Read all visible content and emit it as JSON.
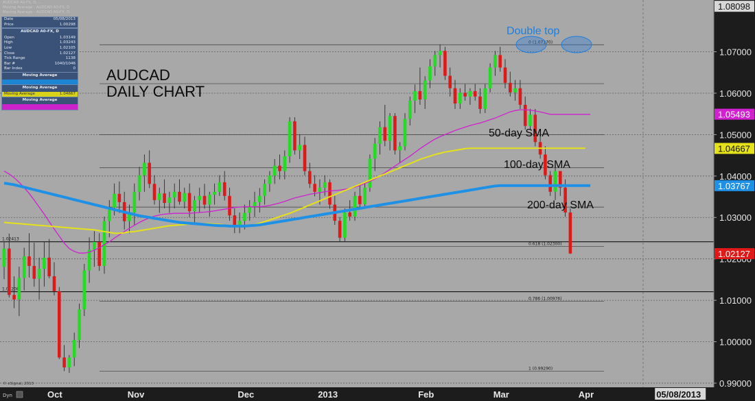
{
  "chart_data": {
    "type": "candlestick",
    "instrument": "AUDCAD",
    "title_line1": "AUDCAD",
    "title_line2": "DAILY CHART",
    "header_lines": [
      "AUDCAD A0-FX, D, ...",
      "Moving Average - AUDCAD A0-FX, D",
      "Moving Average - AUDCAD A0-FX, D"
    ],
    "y_axis": {
      "min": 0.989,
      "max": 1.0825,
      "ticks": [
        "1.07000",
        "1.06000",
        "1.05000",
        "1.04000",
        "1.03000",
        "1.02000",
        "1.01000",
        "1.00000",
        "0.99000"
      ]
    },
    "x_axis": {
      "labels": [
        {
          "label": "Oct",
          "index": 10
        },
        {
          "label": "Nov",
          "index": 26
        },
        {
          "label": "Dec",
          "index": 48
        },
        {
          "label": "2013",
          "index": 64
        },
        {
          "label": "Feb",
          "index": 84
        },
        {
          "label": "Mar",
          "index": 99
        },
        {
          "label": "Apr",
          "index": 116
        },
        {
          "label": "05/08/2013",
          "index": 134
        }
      ]
    },
    "candles": [
      [
        1.0181,
        1.0242,
        1.0151,
        1.0225
      ],
      [
        1.0225,
        1.0261,
        1.0107,
        1.0113
      ],
      [
        1.0113,
        1.0158,
        1.0081,
        1.0102
      ],
      [
        1.0102,
        1.0181,
        1.0062,
        1.0154
      ],
      [
        1.0154,
        1.0227,
        1.0124,
        1.0206
      ],
      [
        1.0206,
        1.0262,
        1.0155,
        1.0183
      ],
      [
        1.0183,
        1.0239,
        1.0133,
        1.0152
      ],
      [
        1.0152,
        1.0203,
        1.0102,
        1.0176
      ],
      [
        1.0176,
        1.0242,
        1.0133,
        1.0203
      ],
      [
        1.0203,
        1.0248,
        1.0153,
        1.0158
      ],
      [
        1.0158,
        1.0192,
        1.0112,
        1.0122
      ],
      [
        1.0122,
        1.0132,
        0.9958,
        0.9962
      ],
      [
        0.9962,
        0.9992,
        0.9929,
        0.9938
      ],
      [
        0.9938,
        0.9968,
        0.9925,
        0.9962
      ],
      [
        0.9962,
        1.0022,
        0.9941,
        1.0004
      ],
      [
        1.0004,
        1.0092,
        0.9985,
        1.0078
      ],
      [
        1.0078,
        1.0188,
        1.0062,
        1.0172
      ],
      [
        1.0172,
        1.0252,
        1.0142,
        1.0222
      ],
      [
        1.0222,
        1.0267,
        1.0181,
        1.0241
      ],
      [
        1.0241,
        1.0262,
        1.0171,
        1.0183
      ],
      [
        1.0183,
        1.0302,
        1.0164,
        1.0291
      ],
      [
        1.0291,
        1.0342,
        1.0252,
        1.0324
      ],
      [
        1.0324,
        1.0382,
        1.0305,
        1.0357
      ],
      [
        1.0357,
        1.0387,
        1.0311,
        1.0337
      ],
      [
        1.0337,
        1.0362,
        1.0271,
        1.0291
      ],
      [
        1.0291,
        1.0331,
        1.0262,
        1.0312
      ],
      [
        1.0312,
        1.0382,
        1.0282,
        1.0362
      ],
      [
        1.0362,
        1.0422,
        1.0341,
        1.0402
      ],
      [
        1.0402,
        1.0452,
        1.0362,
        1.0432
      ],
      [
        1.0432,
        1.0462,
        1.0371,
        1.0381
      ],
      [
        1.0381,
        1.0402,
        1.0331,
        1.0342
      ],
      [
        1.0342,
        1.0372,
        1.0311,
        1.0358
      ],
      [
        1.0358,
        1.0392,
        1.0322,
        1.0335
      ],
      [
        1.0335,
        1.0362,
        1.0311,
        1.0348
      ],
      [
        1.0348,
        1.0382,
        1.0322,
        1.0362
      ],
      [
        1.0362,
        1.0392,
        1.0331,
        1.0338
      ],
      [
        1.0338,
        1.0372,
        1.0322,
        1.0359
      ],
      [
        1.0359,
        1.0382,
        1.0301,
        1.0315
      ],
      [
        1.0315,
        1.0352,
        1.0282,
        1.0342
      ],
      [
        1.0342,
        1.0372,
        1.0311,
        1.0352
      ],
      [
        1.0352,
        1.0381,
        1.0321,
        1.0331
      ],
      [
        1.0331,
        1.0362,
        1.0302,
        1.0355
      ],
      [
        1.0355,
        1.0382,
        1.0331,
        1.0362
      ],
      [
        1.0362,
        1.0402,
        1.0352,
        1.0385
      ],
      [
        1.0385,
        1.0412,
        1.0341,
        1.0352
      ],
      [
        1.0352,
        1.0372,
        1.0292,
        1.0305
      ],
      [
        1.0305,
        1.0322,
        1.0262,
        1.0278
      ],
      [
        1.0278,
        1.0312,
        1.0262,
        1.0292
      ],
      [
        1.0292,
        1.0331,
        1.0271,
        1.0311
      ],
      [
        1.0311,
        1.0342,
        1.0292,
        1.0325
      ],
      [
        1.0325,
        1.0362,
        1.0301,
        1.0337
      ],
      [
        1.0337,
        1.0371,
        1.0312,
        1.0352
      ],
      [
        1.0352,
        1.0392,
        1.0331,
        1.0381
      ],
      [
        1.0381,
        1.0412,
        1.0362,
        1.0401
      ],
      [
        1.0401,
        1.0441,
        1.0381,
        1.0425
      ],
      [
        1.0425,
        1.0452,
        1.0392,
        1.0412
      ],
      [
        1.0412,
        1.0462,
        1.0392,
        1.0448
      ],
      [
        1.0448,
        1.0542,
        1.0432,
        1.0532
      ],
      [
        1.0532,
        1.0542,
        1.0452,
        1.0462
      ],
      [
        1.0462,
        1.0501,
        1.0441,
        1.0475
      ],
      [
        1.0475,
        1.0495,
        1.0402,
        1.0412
      ],
      [
        1.0412,
        1.0432,
        1.0371,
        1.0381
      ],
      [
        1.0381,
        1.0402,
        1.0351,
        1.0362
      ],
      [
        1.0362,
        1.0392,
        1.0331,
        1.0372
      ],
      [
        1.0372,
        1.0402,
        1.0352,
        1.0385
      ],
      [
        1.0385,
        1.0392,
        1.0321,
        1.0331
      ],
      [
        1.0331,
        1.0352,
        1.0282,
        1.0292
      ],
      [
        1.0292,
        1.0301,
        1.0242,
        1.0251
      ],
      [
        1.0251,
        1.0322,
        1.0242,
        1.0312
      ],
      [
        1.0312,
        1.0342,
        1.0292,
        1.0302
      ],
      [
        1.0302,
        1.0362,
        1.0292,
        1.0352
      ],
      [
        1.0352,
        1.0382,
        1.0321,
        1.0332
      ],
      [
        1.0332,
        1.0382,
        1.0322,
        1.0372
      ],
      [
        1.0372,
        1.0452,
        1.0362,
        1.0442
      ],
      [
        1.0442,
        1.0492,
        1.0412,
        1.0478
      ],
      [
        1.0478,
        1.0532,
        1.0452,
        1.0518
      ],
      [
        1.0518,
        1.0572,
        1.0472,
        1.0485
      ],
      [
        1.0485,
        1.0552,
        1.0462,
        1.0545
      ],
      [
        1.0545,
        1.0552,
        1.0452,
        1.0462
      ],
      [
        1.0462,
        1.0482,
        1.0432,
        1.0472
      ],
      [
        1.0472,
        1.0552,
        1.0462,
        1.0538
      ],
      [
        1.0538,
        1.0592,
        1.0522,
        1.0582
      ],
      [
        1.0582,
        1.0621,
        1.0552,
        1.0605
      ],
      [
        1.0605,
        1.0662,
        1.0572,
        1.0585
      ],
      [
        1.0585,
        1.0641,
        1.0562,
        1.0631
      ],
      [
        1.0631,
        1.0682,
        1.0612,
        1.0665
      ],
      [
        1.0665,
        1.0702,
        1.0642,
        1.0692
      ],
      [
        1.0692,
        1.0718,
        1.0662,
        1.0702
      ],
      [
        1.0702,
        1.0712,
        1.0632,
        1.0642
      ],
      [
        1.0642,
        1.0662,
        1.0592,
        1.0612
      ],
      [
        1.0612,
        1.0632,
        1.0562,
        1.0575
      ],
      [
        1.0575,
        1.0612,
        1.0562,
        1.0601
      ],
      [
        1.0601,
        1.0622,
        1.0582,
        1.0592
      ],
      [
        1.0592,
        1.0612,
        1.0572,
        1.0605
      ],
      [
        1.0605,
        1.0622,
        1.0582,
        1.0592
      ],
      [
        1.0592,
        1.0612,
        1.0551,
        1.0562
      ],
      [
        1.0562,
        1.0622,
        1.0552,
        1.0612
      ],
      [
        1.0612,
        1.0672,
        1.0602,
        1.0662
      ],
      [
        1.0662,
        1.0702,
        1.0642,
        1.0692
      ],
      [
        1.0692,
        1.0712,
        1.0652,
        1.0662
      ],
      [
        1.0662,
        1.0682,
        1.0612,
        1.0625
      ],
      [
        1.0625,
        1.0652,
        1.0592,
        1.0602
      ],
      [
        1.0602,
        1.0632,
        1.0582,
        1.0612
      ],
      [
        1.0612,
        1.0632,
        1.0562,
        1.0572
      ],
      [
        1.0572,
        1.0592,
        1.0512,
        1.0521
      ],
      [
        1.0521,
        1.0562,
        1.0512,
        1.0548
      ],
      [
        1.0548,
        1.0562,
        1.0472,
        1.0482
      ],
      [
        1.0482,
        1.0502,
        1.0442,
        1.0452
      ],
      [
        1.0452,
        1.0472,
        1.0392,
        1.0402
      ],
      [
        1.0402,
        1.0412,
        1.0352,
        1.0362
      ],
      [
        1.0362,
        1.0422,
        1.0342,
        1.0412
      ],
      [
        1.0412,
        1.0412,
        1.0352,
        1.0372
      ],
      [
        1.0372,
        1.0392,
        1.0302,
        1.0312
      ],
      [
        1.0312,
        1.0322,
        1.0212,
        1.0213
      ]
    ],
    "moving_averages": [
      {
        "label": "50-day SMA",
        "color": "#d020d0",
        "period": 50,
        "values": [
          1.0412,
          1.0405,
          1.0396,
          1.0385,
          1.0372,
          1.0358,
          1.0342,
          1.0325,
          1.0308,
          1.029,
          1.0272,
          1.0255,
          1.0238,
          1.0225,
          1.0218,
          1.0214,
          1.0214,
          1.0216,
          1.0221,
          1.0227,
          1.0234,
          1.0241,
          1.025,
          1.0258,
          1.0266,
          1.0274,
          1.0281,
          1.0288,
          1.0294,
          1.0299,
          1.0303,
          1.0306,
          1.0308,
          1.0309,
          1.031,
          1.031,
          1.031,
          1.031,
          1.0311,
          1.0312,
          1.0313,
          1.0314,
          1.0316,
          1.0318,
          1.032,
          1.0322,
          1.0324,
          1.0325,
          1.0326,
          1.0326,
          1.0326,
          1.0326,
          1.0327,
          1.0329,
          1.0332,
          1.0335,
          1.0339,
          1.0343,
          1.0347,
          1.035,
          1.0353,
          1.0356,
          1.0358,
          1.036,
          1.0362,
          1.0364,
          1.0365,
          1.0366,
          1.0368,
          1.037,
          1.0373,
          1.0377,
          1.0382,
          1.0387,
          1.0393,
          1.04,
          1.0408,
          1.0416,
          1.0424,
          1.0432,
          1.044,
          1.0448,
          1.0457,
          1.0466,
          1.0474,
          1.0482,
          1.0489,
          1.0495,
          1.05,
          1.0505,
          1.051,
          1.0514,
          1.0518,
          1.0522,
          1.0525,
          1.0528,
          1.0532,
          1.0536,
          1.054,
          1.0545,
          1.055,
          1.0555,
          1.0558,
          1.056,
          1.056,
          1.0559,
          1.0557,
          1.0555,
          1.0552,
          1.0549,
          1.0549,
          1.0549,
          1.0549,
          1.0549,
          1.0549,
          1.0549,
          1.0549,
          1.0549
        ]
      },
      {
        "label": "100-day SMA",
        "color": "#e6e21a",
        "period": 100,
        "values": [
          1.0288,
          1.0287,
          1.0286,
          1.0285,
          1.0284,
          1.0283,
          1.0282,
          1.0281,
          1.028,
          1.0279,
          1.0278,
          1.0277,
          1.0276,
          1.0275,
          1.0274,
          1.0273,
          1.0272,
          1.0271,
          1.027,
          1.0268,
          1.0266,
          1.0264,
          1.0262,
          1.0262,
          1.0263,
          1.0265,
          1.0266,
          1.0268,
          1.027,
          1.0272,
          1.0274,
          1.0276,
          1.0278,
          1.028,
          1.0281,
          1.0282,
          1.0283,
          1.0284,
          1.0285,
          1.0285,
          1.0285,
          1.0285,
          1.0284,
          1.0283,
          1.0282,
          1.0281,
          1.028,
          1.0279,
          1.0279,
          1.028,
          1.0283,
          1.0286,
          1.029,
          1.0294,
          1.0298,
          1.0302,
          1.0306,
          1.031,
          1.0315,
          1.032,
          1.0325,
          1.033,
          1.0335,
          1.034,
          1.0345,
          1.035,
          1.0355,
          1.036,
          1.0365,
          1.037,
          1.0375,
          1.038,
          1.0385,
          1.039,
          1.0395,
          1.04,
          1.0405,
          1.041,
          1.0415,
          1.042,
          1.0425,
          1.043,
          1.0435,
          1.044,
          1.0444,
          1.0448,
          1.0452,
          1.0455,
          1.0458,
          1.046,
          1.0462,
          1.0464,
          1.0466,
          1.0467,
          1.0467,
          1.0467,
          1.0467,
          1.0467,
          1.0467,
          1.0467,
          1.0467,
          1.0467,
          1.0467,
          1.0467,
          1.0467,
          1.0467,
          1.0467,
          1.0467,
          1.0467,
          1.0467,
          1.0467,
          1.0467,
          1.0467,
          1.0467,
          1.0467,
          1.0467,
          1.0467
        ]
      },
      {
        "label": "200-day SMA",
        "color": "#1e90e6",
        "period": 200,
        "values": [
          1.0383,
          1.0381,
          1.0379,
          1.0376,
          1.0373,
          1.037,
          1.0367,
          1.0364,
          1.0361,
          1.0358,
          1.0355,
          1.0352,
          1.0349,
          1.0346,
          1.0343,
          1.034,
          1.0337,
          1.0334,
          1.0331,
          1.0328,
          1.0325,
          1.0322,
          1.0319,
          1.0316,
          1.0313,
          1.031,
          1.0307,
          1.0304,
          1.0302,
          1.03,
          1.0298,
          1.0296,
          1.0294,
          1.0292,
          1.029,
          1.0288,
          1.0287,
          1.0286,
          1.0285,
          1.0284,
          1.0283,
          1.0282,
          1.0281,
          1.028,
          1.028,
          1.0279,
          1.0279,
          1.0279,
          1.0279,
          1.028,
          1.0281,
          1.0282,
          1.0284,
          1.0286,
          1.0288,
          1.029,
          1.0292,
          1.0294,
          1.0296,
          1.0298,
          1.03,
          1.0302,
          1.0304,
          1.0306,
          1.0308,
          1.031,
          1.0312,
          1.0314,
          1.0316,
          1.0318,
          1.032,
          1.0322,
          1.0324,
          1.0326,
          1.0328,
          1.033,
          1.0332,
          1.0334,
          1.0336,
          1.0338,
          1.034,
          1.0342,
          1.0344,
          1.0346,
          1.0348,
          1.035,
          1.0352,
          1.0354,
          1.0356,
          1.0358,
          1.036,
          1.0362,
          1.0364,
          1.0366,
          1.0368,
          1.037,
          1.0372,
          1.0374,
          1.0376,
          1.0377,
          1.0377,
          1.0377,
          1.0377,
          1.0377,
          1.0377,
          1.0377,
          1.0377,
          1.0377,
          1.0377,
          1.0377,
          1.0377,
          1.0377,
          1.0377,
          1.0377,
          1.0377,
          1.0377,
          1.0377,
          1.0377
        ]
      }
    ],
    "price_labels": [
      {
        "value": 1.08098,
        "text": "1.08098",
        "bg": "#d8d8d8",
        "fg": "#111111"
      },
      {
        "value": 1.05493,
        "text": "1.05493",
        "bg": "#d020d0",
        "fg": "#ffffff"
      },
      {
        "value": 1.04667,
        "text": "1.04667",
        "bg": "#e6e21a",
        "fg": "#111111"
      },
      {
        "value": 1.03767,
        "text": "1.03767",
        "bg": "#1e90e6",
        "fg": "#ffffff"
      },
      {
        "value": 1.02127,
        "text": "1.02127",
        "bg": "#e01818",
        "fg": "#ffffff"
      }
    ],
    "horizontal_lines": [
      {
        "value": 1.02413,
        "text": "1.02413"
      },
      {
        "value": 1.01208,
        "text": "1.01208"
      }
    ],
    "fibonacci_levels": [
      {
        "value": 1.0717,
        "text": "0 (1.07170)"
      },
      {
        "value": 1.0623,
        "text": ""
      },
      {
        "value": 1.05,
        "text": ""
      },
      {
        "value": 1.042,
        "text": ""
      },
      {
        "value": 1.0325,
        "text": ""
      },
      {
        "value": 1.023,
        "text": "0.618 (1.02300)"
      },
      {
        "value": 1.00976,
        "text": "0.786 (1.00976)"
      },
      {
        "value": 0.9929,
        "text": "1 (0.99290)"
      }
    ],
    "annotations": [
      {
        "text": "Double top",
        "kind": "pattern"
      },
      {
        "text": "50-day SMA",
        "kind": "ma_label"
      },
      {
        "text": "100-day SMA",
        "kind": "ma_label"
      },
      {
        "text": "200-day SMA",
        "kind": "ma_label"
      }
    ],
    "grid": true,
    "legend_position": "top-left"
  },
  "info_panel": {
    "date_label": "Date",
    "date_value": "05/08/2013",
    "price_label": "Price",
    "price_value": "1.00298",
    "symbol": "AUDCAD A0-FX, D",
    "rows": [
      {
        "label": "Open",
        "value": "1.03149"
      },
      {
        "label": "High",
        "value": "1.03243"
      },
      {
        "label": "Low",
        "value": "1.02105"
      },
      {
        "label": "Close",
        "value": "1.02127"
      },
      {
        "label": "Tick Range",
        "value": "1138"
      },
      {
        "label": "Bar #",
        "value": "1040/1046"
      },
      {
        "label": "Bar Index",
        "value": "0"
      }
    ],
    "ma_heading": "Moving Average",
    "ma_yellow_label": "Moving Average",
    "ma_yellow_value": "1.04667"
  },
  "footer": {
    "left_label": "© eSignal, 2013",
    "dyn_label": "Dyn"
  },
  "colors": {
    "background": "#a8a8a8",
    "up_candle": "#22dd22",
    "down_candle": "#dd1a1a",
    "annotation_blue": "#1a7fe0"
  }
}
